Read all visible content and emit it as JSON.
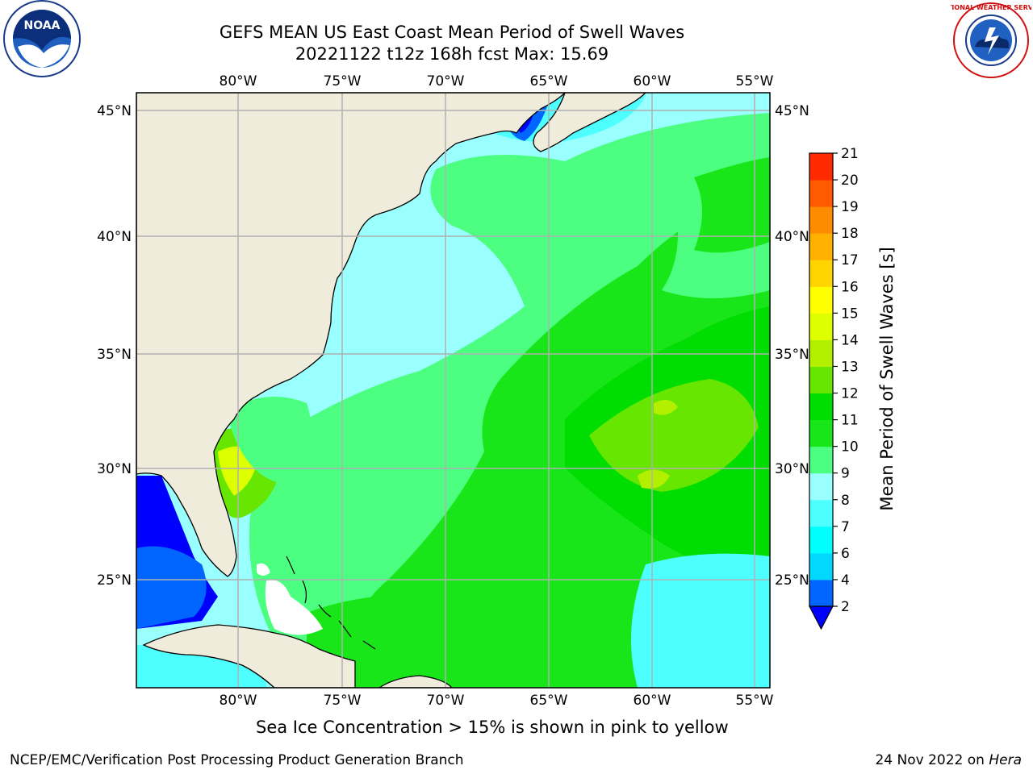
{
  "title_line1": "GEFS MEAN US East Coast Mean Period of Swell Waves",
  "title_line2": "20221122 t12z 168h fcst   Max: 15.69",
  "logos": {
    "left": "noaa-logo",
    "right": "nws-logo",
    "left_text": "NOAA",
    "right_text": "NATIONAL WEATHER SERVICE"
  },
  "map": {
    "lon_labels": [
      "80°W",
      "75°W",
      "70°W",
      "65°W",
      "60°W",
      "55°W"
    ],
    "lat_labels": [
      "45°N",
      "40°N",
      "35°N",
      "30°N",
      "25°N"
    ],
    "land_color": "#efecdc",
    "grid_color": "#b0b0b0",
    "missing_color": "#ffffff"
  },
  "colorbar": {
    "label": "Mean Period of Swell Waves [s]",
    "ticks": [
      "2",
      "4",
      "6",
      "7",
      "8",
      "9",
      "10",
      "11",
      "12",
      "13",
      "14",
      "15",
      "16",
      "17",
      "18",
      "19",
      "20",
      "21"
    ],
    "colors": [
      "#0000ff",
      "#0066ff",
      "#00d8ff",
      "#00ffff",
      "#4dffff",
      "#99ffff",
      "#4dff80",
      "#19e619",
      "#00dd00",
      "#66e600",
      "#b3f000",
      "#ddff00",
      "#ffff00",
      "#ffd400",
      "#ffb000",
      "#ff8c00",
      "#ff5a00",
      "#ff2a00",
      "#ff0000"
    ],
    "extend": "min"
  },
  "ice_note": "Sea Ice Concentration > 15% is shown in pink to yellow",
  "footer_left": "NCEP/EMC/Verification Post Processing Product Generation Branch",
  "footer_date": "24 Nov 2022 on",
  "footer_machine": "Hera"
}
